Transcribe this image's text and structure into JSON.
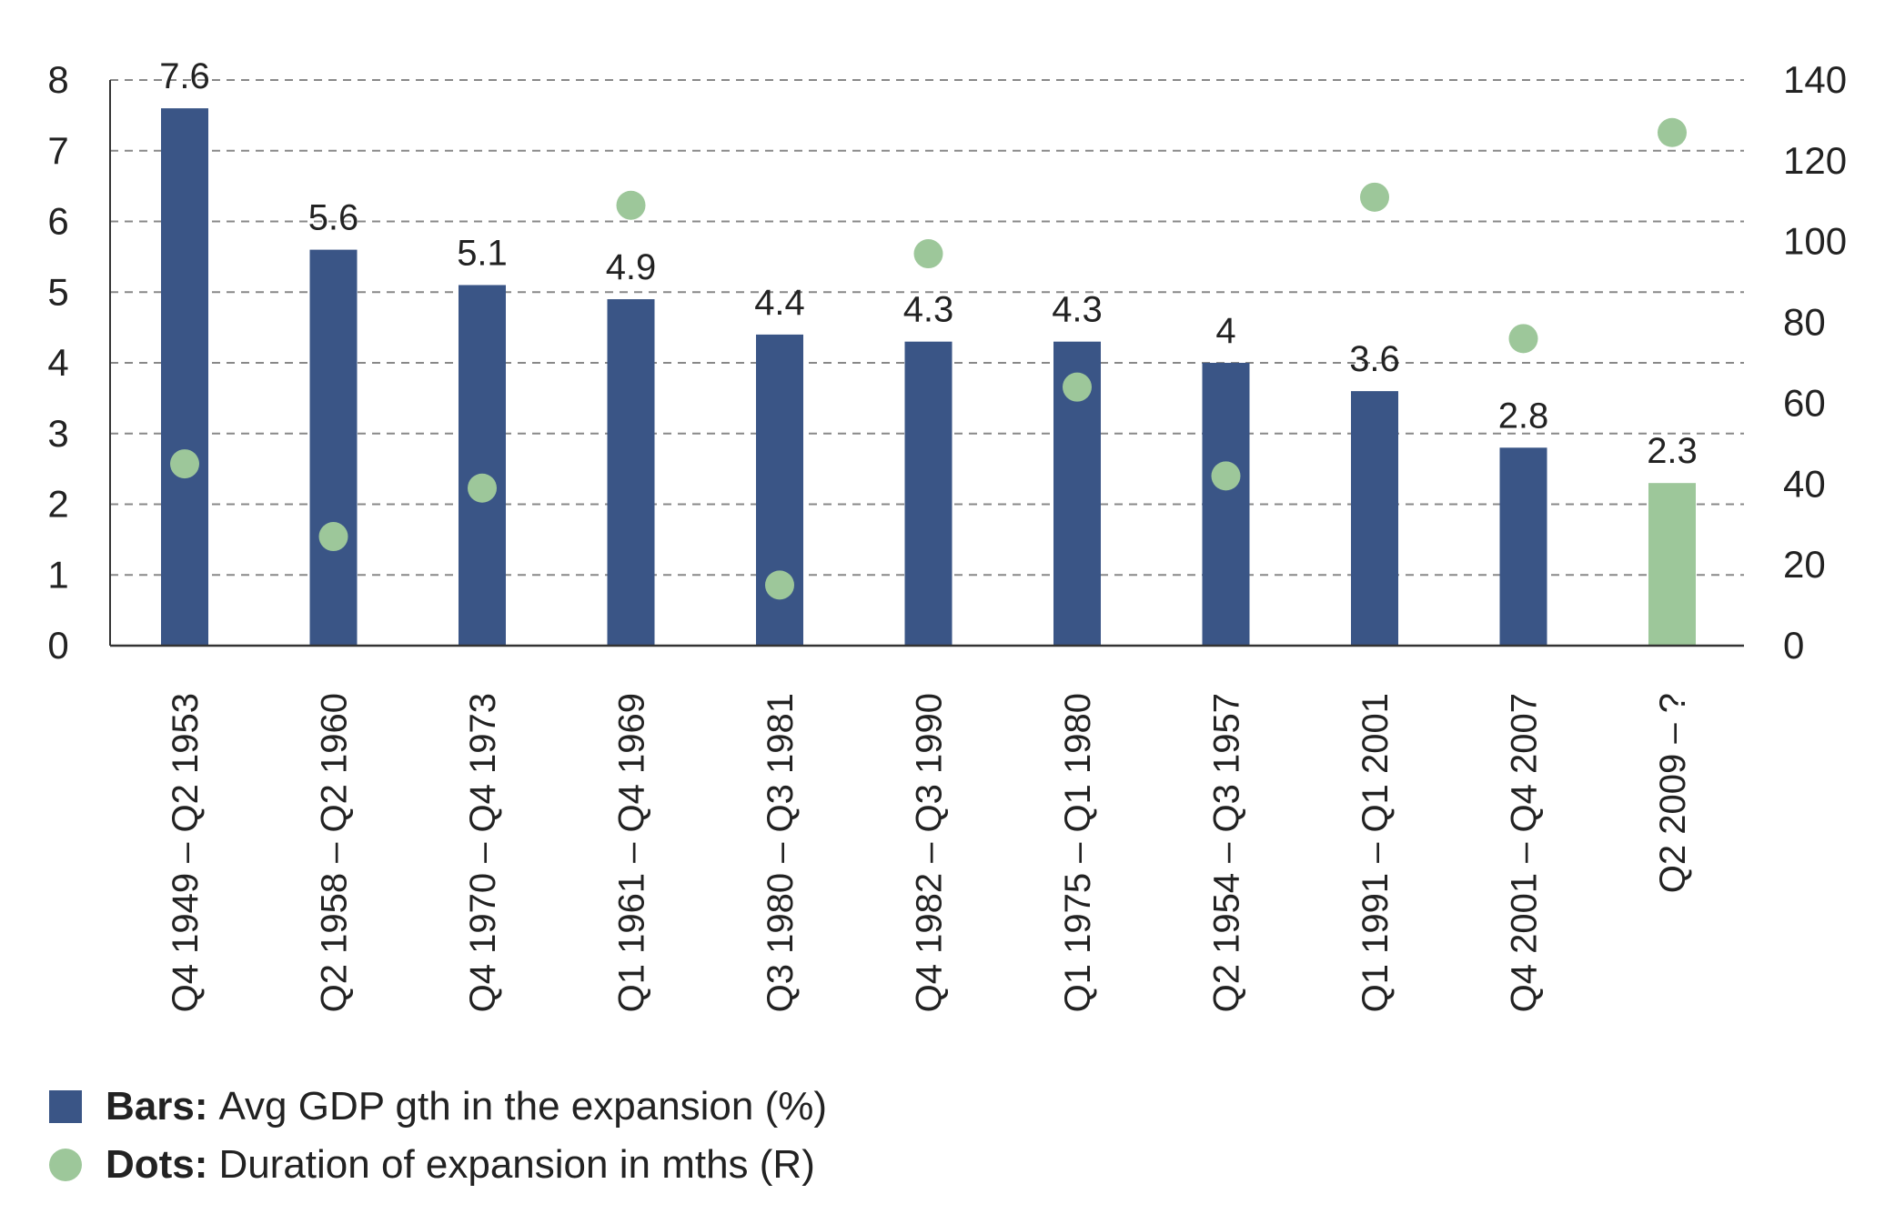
{
  "chart_data": {
    "type": "bar",
    "categories": [
      "Q4 1949 – Q2 1953",
      "Q2 1958 – Q2 1960",
      "Q4 1970 – Q4 1973",
      "Q1 1961 – Q4 1969",
      "Q3 1980 – Q3 1981",
      "Q4 1982 – Q3 1990",
      "Q1 1975 – Q1 1980",
      "Q2 1954 – Q3 1957",
      "Q1 1991 – Q1 2001",
      "Q4 2001 – Q4 2007",
      "Q2 2009 – ?"
    ],
    "series": [
      {
        "name": "Avg GDP gth in the expansion (%)",
        "type": "bar",
        "axis": "left",
        "values": [
          7.6,
          5.6,
          5.1,
          4.9,
          4.4,
          4.3,
          4.3,
          4.0,
          3.6,
          2.8,
          2.3
        ],
        "data_labels": [
          "7.6",
          "5.6",
          "5.1",
          "4.9",
          "4.4",
          "4.3",
          "4.3",
          "4",
          "3.6",
          "2.8",
          "2.3"
        ]
      },
      {
        "name": "Duration of expansion in mths (R)",
        "type": "scatter",
        "axis": "right",
        "values": [
          45,
          27,
          39,
          109,
          15,
          97,
          64,
          42,
          111,
          76,
          127
        ]
      }
    ],
    "left_axis": {
      "min": 0,
      "max": 8,
      "ticks": [
        "0",
        "1",
        "2",
        "3",
        "4",
        "5",
        "6",
        "7",
        "8"
      ]
    },
    "right_axis": {
      "min": 0,
      "max": 140,
      "ticks": [
        "0",
        "20",
        "40",
        "60",
        "80",
        "100",
        "120",
        "140"
      ]
    },
    "grid": true,
    "legend": {
      "position": "bottom-left",
      "items": [
        {
          "prefix": "Bars:",
          "text": "Avg GDP gth in the expansion (%)"
        },
        {
          "prefix": "Dots:",
          "text": "Duration of expansion in mths (R)"
        }
      ]
    },
    "colors": {
      "bar": "#3a5586",
      "bar_highlight": "#9dc79a",
      "dot": "#9dc79a",
      "grid": "#888888",
      "text": "#222222"
    }
  }
}
